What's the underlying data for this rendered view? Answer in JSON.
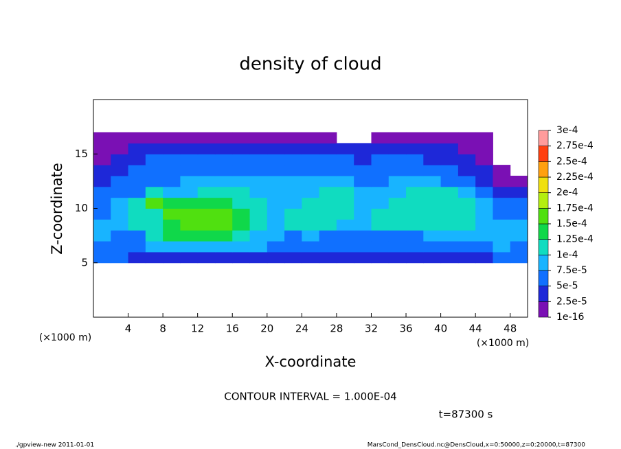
{
  "chart_data": {
    "type": "heatmap",
    "title": "density of cloud",
    "x_label": "X-coordinate",
    "y_label": "Z-coordinate",
    "x_unit_label": "(×1000 m)",
    "x_unit_label_right": "(×1000 m)",
    "contour_note": "CONTOUR INTERVAL = 1.000E-04",
    "time_label": "t=87300 s",
    "footer_left": "./gpview-new   2011-01-01",
    "footer_right": "MarsCond_DensCloud.nc@DensCloud,x=0:50000,z=0:20000,t=87300",
    "xlim": [
      0,
      50
    ],
    "xticks": [
      4,
      8,
      12,
      16,
      20,
      24,
      28,
      32,
      36,
      40,
      44,
      48
    ],
    "ylim": [
      0,
      20
    ],
    "yticks": [
      5,
      10,
      15
    ],
    "x": [
      1,
      3,
      5,
      7,
      9,
      11,
      13,
      15,
      17,
      19,
      21,
      23,
      25,
      27,
      29,
      31,
      33,
      35,
      37,
      39,
      41,
      43,
      45,
      47,
      49
    ],
    "z": [
      5.5,
      6.5,
      7.5,
      8.5,
      9.5,
      10.5,
      11.5,
      12.5,
      13.5,
      14.5,
      15.5,
      16.5
    ],
    "values": [
      [
        5e-05,
        5e-05,
        4e-05,
        3e-05,
        3e-05,
        3e-05,
        3e-05,
        3e-05,
        3e-05,
        3e-05,
        3e-05,
        3e-05,
        3e-05,
        3e-05,
        3e-05,
        3e-05,
        3e-05,
        3e-05,
        3e-05,
        3e-05,
        3e-05,
        3e-05,
        4e-05,
        6e-05,
        6e-05
      ],
      [
        7e-05,
        6e-05,
        6e-05,
        9e-05,
        9e-05,
        9e-05,
        9e-05,
        9e-05,
        9e-05,
        8e-05,
        7e-05,
        6e-05,
        6e-05,
        6e-05,
        6e-05,
        6e-05,
        6e-05,
        6e-05,
        6e-05,
        6e-05,
        6e-05,
        6e-05,
        7e-05,
        8e-05,
        7e-05
      ],
      [
        8e-05,
        6e-05,
        7e-05,
        0.00012,
        0.00013,
        0.00013,
        0.00013,
        0.00013,
        0.00012,
        9e-05,
        8e-05,
        7e-05,
        8e-05,
        7e-05,
        7e-05,
        7e-05,
        7e-05,
        7e-05,
        7e-05,
        8e-05,
        8e-05,
        8e-05,
        9e-05,
        9e-05,
        8e-05
      ],
      [
        9e-05,
        8e-05,
        0.00011,
        0.00011,
        0.00014,
        0.00015,
        0.00015,
        0.00015,
        0.00014,
        0.0001,
        9e-05,
        0.0001,
        0.00011,
        0.0001,
        9e-05,
        8e-05,
        0.00011,
        0.00011,
        0.0001,
        0.0001,
        0.00011,
        0.00011,
        9e-05,
        9e-05,
        8e-05
      ],
      [
        7e-05,
        9e-05,
        0.00012,
        0.00011,
        0.00015,
        0.00016,
        0.00016,
        0.00015,
        0.00014,
        0.0001,
        9e-05,
        0.00011,
        0.00012,
        0.00012,
        0.00012,
        9e-05,
        0.00012,
        0.00012,
        0.00012,
        0.00012,
        0.00012,
        0.00011,
        8e-05,
        7e-05,
        6e-05
      ],
      [
        6e-05,
        8e-05,
        0.00011,
        0.00015,
        0.00013,
        0.00014,
        0.00014,
        0.00013,
        0.00011,
        0.0001,
        8e-05,
        9e-05,
        0.00011,
        0.00012,
        0.00012,
        8e-05,
        9e-05,
        0.00011,
        0.00012,
        0.00012,
        0.00012,
        0.00011,
        8e-05,
        6e-05,
        5e-05
      ],
      [
        5e-05,
        6e-05,
        7e-05,
        0.0001,
        8e-05,
        9e-05,
        0.00011,
        0.00011,
        0.0001,
        9e-05,
        8e-05,
        9e-05,
        9e-05,
        0.00011,
        0.0001,
        8e-05,
        8e-05,
        9e-05,
        0.00011,
        0.00011,
        0.00011,
        9e-05,
        6e-05,
        4e-05,
        4e-05
      ],
      [
        4e-05,
        5e-05,
        6e-05,
        7e-05,
        7e-05,
        8e-05,
        8e-05,
        8e-05,
        8e-05,
        8e-05,
        8e-05,
        8e-05,
        8e-05,
        8e-05,
        8e-05,
        7e-05,
        7e-05,
        8e-05,
        8e-05,
        8e-05,
        7e-05,
        6e-05,
        4e-05,
        2e-05,
        2e-05
      ],
      [
        3e-05,
        4e-05,
        5e-05,
        6e-05,
        6e-05,
        7e-05,
        7e-05,
        7e-05,
        7e-05,
        7e-05,
        7e-05,
        7e-05,
        7e-05,
        7e-05,
        6e-05,
        6e-05,
        6e-05,
        6e-05,
        6e-05,
        6e-05,
        5e-05,
        4e-05,
        3e-05,
        2e-05,
        null
      ],
      [
        2e-05,
        3e-05,
        4e-05,
        5e-05,
        5e-05,
        5e-05,
        6e-05,
        6e-05,
        6e-05,
        5e-05,
        5e-05,
        6e-05,
        5e-05,
        5e-05,
        5e-05,
        4e-05,
        5e-05,
        5e-05,
        5e-05,
        4e-05,
        4e-05,
        3e-05,
        2e-05,
        null,
        null
      ],
      [
        2e-05,
        2e-05,
        3e-05,
        3e-05,
        4e-05,
        4e-05,
        4e-05,
        4e-05,
        4e-05,
        4e-05,
        4e-05,
        4e-05,
        4e-05,
        4e-05,
        3e-05,
        3e-05,
        4e-05,
        4e-05,
        4e-05,
        3e-05,
        3e-05,
        2e-05,
        2e-05,
        null,
        null
      ],
      [
        1e-05,
        1e-05,
        1e-05,
        1e-05,
        1e-05,
        1e-05,
        1e-05,
        1e-05,
        1e-05,
        1e-05,
        1e-05,
        1e-05,
        1e-05,
        1e-05,
        null,
        null,
        1e-05,
        1e-05,
        1e-05,
        1e-05,
        1e-05,
        1e-05,
        1e-05,
        null,
        null
      ]
    ],
    "levels": [
      {
        "value": 1e-16,
        "label": "1e-16"
      },
      {
        "value": 2.5e-05,
        "label": "2.5e-5"
      },
      {
        "value": 5e-05,
        "label": "5e-5"
      },
      {
        "value": 7.5e-05,
        "label": "7.5e-5"
      },
      {
        "value": 0.0001,
        "label": "1e-4"
      },
      {
        "value": 0.000125,
        "label": "1.25e-4"
      },
      {
        "value": 0.00015,
        "label": "1.5e-4"
      },
      {
        "value": 0.000175,
        "label": "1.75e-4"
      },
      {
        "value": 0.0002,
        "label": "2e-4"
      },
      {
        "value": 0.000225,
        "label": "2.25e-4"
      },
      {
        "value": 0.00025,
        "label": "2.5e-4"
      },
      {
        "value": 0.000275,
        "label": "2.75e-4"
      },
      {
        "value": 0.0003,
        "label": "3e-4"
      }
    ],
    "colors": [
      "#7a10b4",
      "#1e28d8",
      "#1070ff",
      "#18b4ff",
      "#10dcc0",
      "#10d84a",
      "#50e010",
      "#b4ee10",
      "#f0e010",
      "#ffa010",
      "#ff4010",
      "#ff9c9c"
    ]
  }
}
